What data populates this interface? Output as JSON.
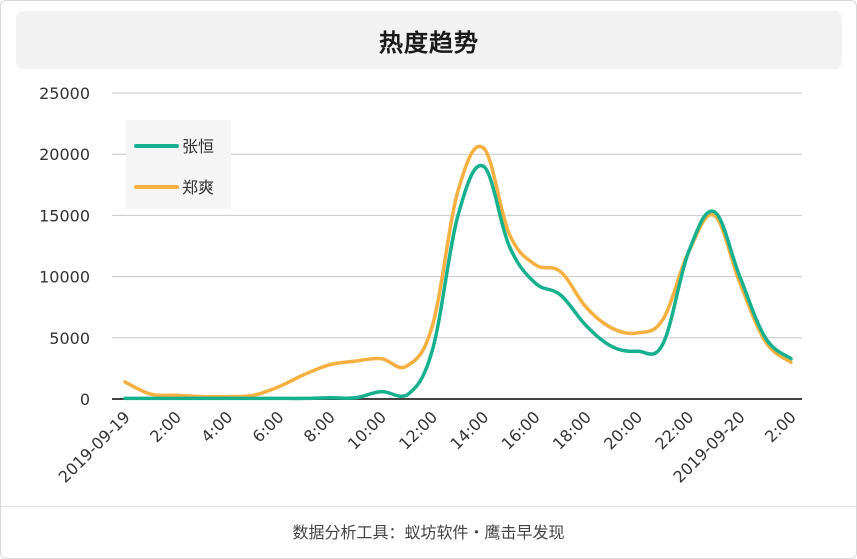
{
  "footer": {
    "text": "数据分析工具：蚁坊软件・鹰击早发现"
  },
  "colors": {
    "series_a": "#16b08e",
    "series_b": "#f5b041"
  },
  "chart_data": {
    "type": "line",
    "title": "热度趋势",
    "xlabel": "",
    "ylabel": "",
    "x_hours": [
      0,
      1,
      2,
      3,
      4,
      5,
      6,
      7,
      8,
      9,
      10,
      11,
      12,
      13,
      14,
      15,
      16,
      17,
      18,
      19,
      20,
      21,
      22,
      23,
      24,
      25,
      26
    ],
    "x_ticks": [
      {
        "hour": 0,
        "label": "2019-09-19"
      },
      {
        "hour": 2,
        "label": "2:00"
      },
      {
        "hour": 4,
        "label": "4:00"
      },
      {
        "hour": 6,
        "label": "6:00"
      },
      {
        "hour": 8,
        "label": "8:00"
      },
      {
        "hour": 10,
        "label": "10:00"
      },
      {
        "hour": 12,
        "label": "12:00"
      },
      {
        "hour": 14,
        "label": "14:00"
      },
      {
        "hour": 16,
        "label": "16:00"
      },
      {
        "hour": 18,
        "label": "18:00"
      },
      {
        "hour": 20,
        "label": "20:00"
      },
      {
        "hour": 22,
        "label": "22:00"
      },
      {
        "hour": 24,
        "label": "2019-09-20"
      },
      {
        "hour": 26,
        "label": "2:00"
      }
    ],
    "y_ticks": [
      0,
      5000,
      10000,
      15000,
      20000,
      25000
    ],
    "ylim": [
      0,
      25000
    ],
    "grid": true,
    "legend_position": "top-left",
    "series": [
      {
        "name": "张恒",
        "values": [
          50,
          50,
          50,
          50,
          50,
          50,
          50,
          50,
          100,
          100,
          600,
          300,
          4000,
          15000,
          19000,
          12500,
          9500,
          8500,
          6000,
          4300,
          3900,
          4500,
          12000,
          15300,
          10000,
          5000,
          3300
        ]
      },
      {
        "name": "郑爽",
        "values": [
          1400,
          400,
          300,
          200,
          200,
          300,
          1000,
          2000,
          2800,
          3100,
          3300,
          2700,
          6000,
          17000,
          20500,
          13500,
          11000,
          10400,
          7500,
          5800,
          5400,
          6500,
          12000,
          15000,
          9500,
          4700,
          3000
        ]
      }
    ]
  }
}
